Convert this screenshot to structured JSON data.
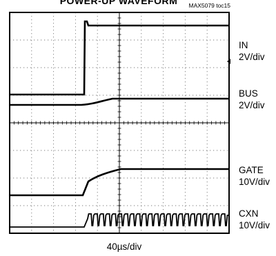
{
  "chart_data": {
    "type": "line",
    "title": "POWER-UP WAVEFORM",
    "source_tag": "MAX5079 toc15",
    "xlabel": "40µs/div",
    "x_divisions": 10,
    "y_divisions": 8,
    "grid": true,
    "channels": [
      {
        "name": "IN",
        "scale": "2V/div"
      },
      {
        "name": "BUS",
        "scale": "2V/div"
      },
      {
        "name": "GATE",
        "scale": "10V/div"
      },
      {
        "name": "CXN",
        "scale": "10V/div"
      }
    ]
  }
}
